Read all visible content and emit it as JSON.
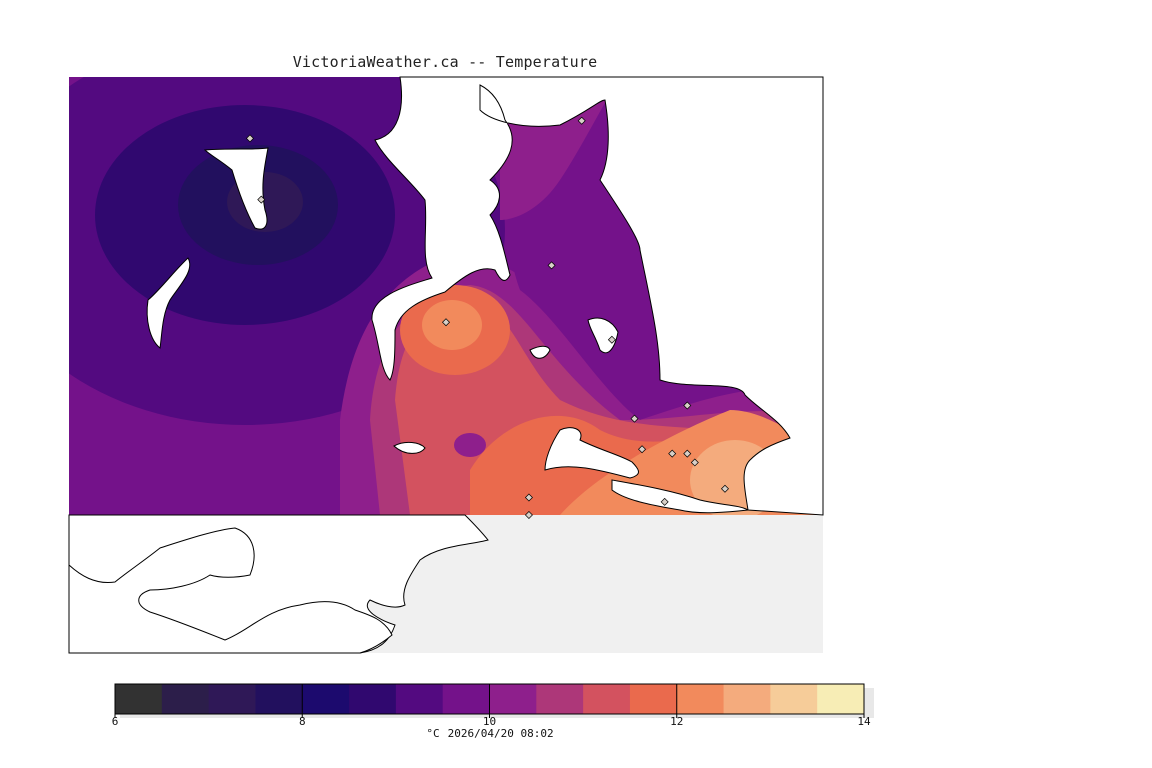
{
  "title": "VictoriaWeather.ca -- Temperature",
  "legend": {
    "unit": "°C",
    "datetime": "2026/04/20 08:02",
    "min": 6,
    "max": 14,
    "labeled_ticks": [
      6,
      8,
      10,
      12,
      14
    ],
    "colors": [
      "#323232",
      "#2c1e4a",
      "#2f1857",
      "#22105e",
      "#1c0a6e",
      "#30086f",
      "#530a80",
      "#74128a",
      "#8e1f8c",
      "#ad3779",
      "#d3525f",
      "#ea6a4d",
      "#f28a5c",
      "#f4ab7d",
      "#f6cc99",
      "#f7edb5"
    ]
  },
  "colors": {
    "land_background": "#f0f0f0",
    "water": "#ffffff",
    "coastline": "#000000",
    "station_marker": "#d8d0c8"
  },
  "stations": [
    {
      "lat_frac": 0.14,
      "lon_frac": 0.24
    },
    {
      "lat_frac": 0.28,
      "lon_frac": 0.255
    },
    {
      "lat_frac": 0.56,
      "lon_frac": 0.5
    },
    {
      "lat_frac": 0.43,
      "lon_frac": 0.64
    },
    {
      "lat_frac": 0.6,
      "lon_frac": 0.72
    },
    {
      "lat_frac": 0.1,
      "lon_frac": 0.68
    },
    {
      "lat_frac": 0.75,
      "lon_frac": 0.82
    },
    {
      "lat_frac": 0.78,
      "lon_frac": 0.75
    },
    {
      "lat_frac": 0.85,
      "lon_frac": 0.76
    },
    {
      "lat_frac": 0.86,
      "lon_frac": 0.8
    },
    {
      "lat_frac": 0.88,
      "lon_frac": 0.83
    },
    {
      "lat_frac": 0.86,
      "lon_frac": 0.82
    },
    {
      "lat_frac": 0.94,
      "lon_frac": 0.87
    },
    {
      "lat_frac": 0.97,
      "lon_frac": 0.79
    },
    {
      "lat_frac": 1.0,
      "lon_frac": 0.61
    },
    {
      "lat_frac": 0.96,
      "lon_frac": 0.61
    }
  ]
}
